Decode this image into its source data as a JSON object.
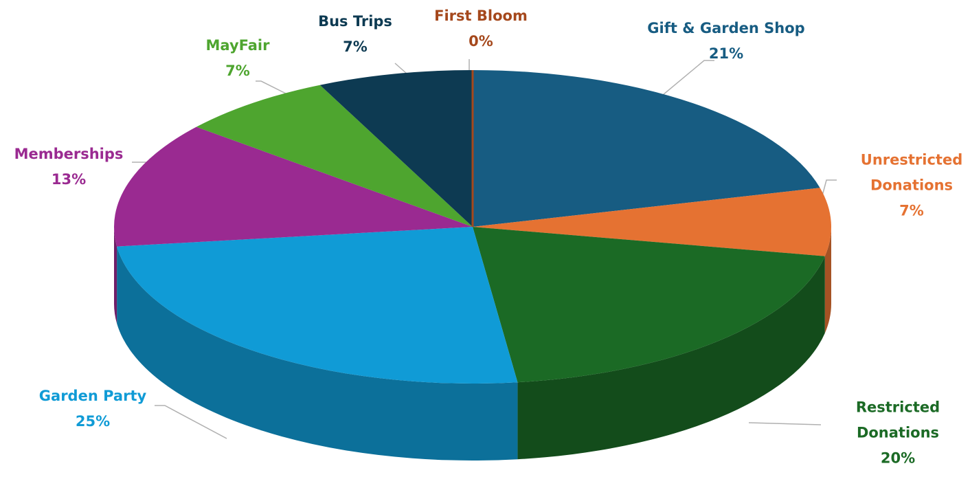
{
  "chart_data": {
    "type": "pie",
    "categories": [
      "Gift & Garden Shop",
      "Unrestricted Donations",
      "Restricted Donations",
      "Garden Party",
      "Memberships",
      "MayFair",
      "Bus Trips",
      "First Bloom"
    ],
    "values": [
      21,
      7,
      20,
      25,
      13,
      7,
      7,
      0
    ],
    "value_labels": [
      "21%",
      "7%",
      "20%",
      "25%",
      "13%",
      "7%",
      "7%",
      "0%"
    ],
    "colors": [
      "#175c82",
      "#e57232",
      "#1b6a25",
      "#109bd6",
      "#9a2a91",
      "#4ea52f",
      "#0d3a52",
      "#a5481c"
    ]
  }
}
